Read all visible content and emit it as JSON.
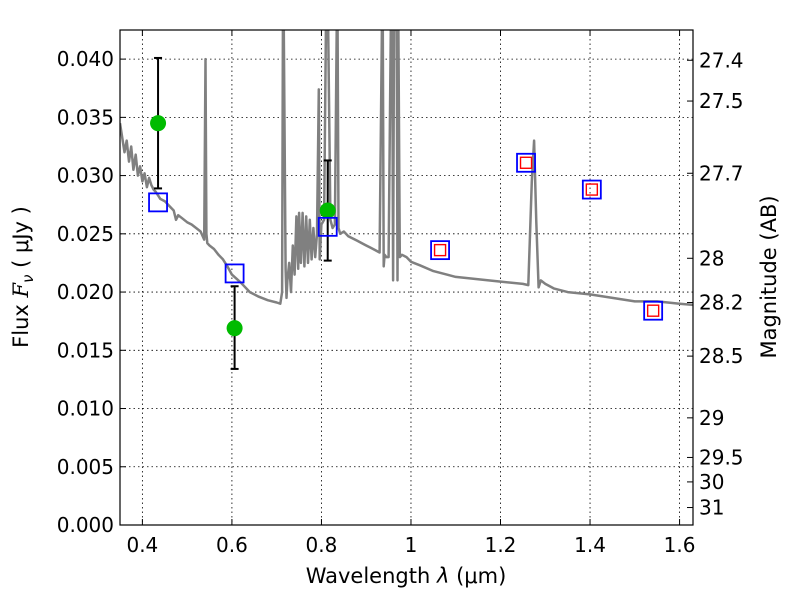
{
  "chart_data": {
    "type": "scatter",
    "xlabel_prefix": "Wavelength  ",
    "xlabel_symbol": "λ",
    "xlabel_unit": " (μm)",
    "ylabel_prefix": "Flux  ",
    "ylabel_symbol": "F",
    "ylabel_subscript": "ν",
    "ylabel_unit": "  ( μJy )",
    "y2label": "Magnitude (AB)",
    "xlim": [
      0.35,
      1.63
    ],
    "ylim": [
      0.0,
      0.0425
    ],
    "grid": true,
    "xticks": [
      0.4,
      0.6,
      0.8,
      1.0,
      1.2,
      1.4,
      1.6
    ],
    "xtick_labels": [
      "0.4",
      "0.6",
      "0.8",
      "1",
      "1.2",
      "1.4",
      "1.6"
    ],
    "yticks": [
      0.0,
      0.005,
      0.01,
      0.015,
      0.02,
      0.025,
      0.03,
      0.035,
      0.04
    ],
    "ytick_labels": [
      "0.000",
      "0.005",
      "0.010",
      "0.015",
      "0.020",
      "0.025",
      "0.030",
      "0.035",
      "0.040"
    ],
    "mag_ticks": [
      {
        "label": "27.4",
        "flux": 0.0399
      },
      {
        "label": "27.5",
        "flux": 0.0364
      },
      {
        "label": "27.7",
        "flux": 0.0302
      },
      {
        "label": "28",
        "flux": 0.0229
      },
      {
        "label": "28.2",
        "flux": 0.0191
      },
      {
        "label": "28.5",
        "flux": 0.0145
      },
      {
        "label": "29",
        "flux": 0.0092
      },
      {
        "label": "29.5",
        "flux": 0.0058
      },
      {
        "label": "30",
        "flux": 0.0037
      },
      {
        "label": "31",
        "flux": 0.0015
      }
    ],
    "series": [
      {
        "name": "observed",
        "marker": "circle",
        "color": "#00bb00",
        "points": [
          {
            "x": 0.435,
            "y": 0.0345,
            "ylo": 0.0289,
            "yhi": 0.0401
          },
          {
            "x": 0.606,
            "y": 0.0169,
            "ylo": 0.0134,
            "yhi": 0.0205
          },
          {
            "x": 0.814,
            "y": 0.027,
            "ylo": 0.0227,
            "yhi": 0.0313
          }
        ]
      },
      {
        "name": "model_broadband",
        "marker": "square",
        "color": "#0000ff",
        "points": [
          {
            "x": 0.435,
            "y": 0.0277
          },
          {
            "x": 0.606,
            "y": 0.0216
          },
          {
            "x": 0.814,
            "y": 0.0256
          },
          {
            "x": 1.065,
            "y": 0.0236
          },
          {
            "x": 1.257,
            "y": 0.0311
          },
          {
            "x": 1.404,
            "y": 0.0288
          },
          {
            "x": 1.541,
            "y": 0.0184
          }
        ]
      },
      {
        "name": "model_ir",
        "marker": "square-small",
        "color": "#ff0000",
        "points": [
          {
            "x": 1.065,
            "y": 0.0236
          },
          {
            "x": 1.257,
            "y": 0.0311
          },
          {
            "x": 1.404,
            "y": 0.0288
          },
          {
            "x": 1.541,
            "y": 0.0184
          }
        ]
      },
      {
        "name": "sed_model",
        "type": "line",
        "color": "#808080",
        "x": [
          0.35,
          0.36,
          0.365,
          0.37,
          0.375,
          0.38,
          0.385,
          0.39,
          0.395,
          0.4,
          0.405,
          0.41,
          0.415,
          0.42,
          0.425,
          0.43,
          0.435,
          0.44,
          0.45,
          0.46,
          0.47,
          0.475,
          0.48,
          0.49,
          0.5,
          0.51,
          0.52,
          0.53,
          0.538,
          0.541,
          0.543,
          0.545,
          0.55,
          0.56,
          0.57,
          0.58,
          0.59,
          0.6,
          0.62,
          0.64,
          0.66,
          0.68,
          0.7,
          0.708,
          0.712,
          0.714,
          0.716,
          0.72,
          0.722,
          0.724,
          0.728,
          0.732,
          0.736,
          0.74,
          0.744,
          0.748,
          0.75,
          0.754,
          0.758,
          0.762,
          0.766,
          0.77,
          0.774,
          0.778,
          0.782,
          0.786,
          0.79,
          0.794,
          0.796,
          0.8,
          0.806,
          0.81,
          0.815,
          0.82,
          0.825,
          0.83,
          0.834,
          0.836,
          0.838,
          0.842,
          0.85,
          0.86,
          0.87,
          0.88,
          0.89,
          0.9,
          0.91,
          0.92,
          0.93,
          0.935,
          0.937,
          0.939,
          0.941,
          0.945,
          0.95,
          0.955,
          0.958,
          0.96,
          0.962,
          0.965,
          0.968,
          0.97,
          0.972,
          0.975,
          0.98,
          0.985,
          0.99,
          1.0,
          1.02,
          1.05,
          1.08,
          1.1,
          1.15,
          1.2,
          1.25,
          1.262,
          1.27,
          1.275,
          1.28,
          1.285,
          1.29,
          1.3,
          1.32,
          1.35,
          1.4,
          1.45,
          1.5,
          1.55,
          1.6,
          1.63
        ],
        "y": [
          0.0345,
          0.032,
          0.033,
          0.0312,
          0.0325,
          0.0305,
          0.0318,
          0.03,
          0.0308,
          0.0295,
          0.0302,
          0.029,
          0.0298,
          0.0292,
          0.0288,
          0.0286,
          0.0283,
          0.028,
          0.0278,
          0.0274,
          0.027,
          0.0262,
          0.0266,
          0.0263,
          0.026,
          0.0258,
          0.0255,
          0.0252,
          0.0245,
          0.04,
          0.025,
          0.0242,
          0.024,
          0.0237,
          0.0232,
          0.0228,
          0.0222,
          0.0215,
          0.0208,
          0.02,
          0.0196,
          0.0193,
          0.0191,
          0.019,
          0.02,
          0.0425,
          0.0425,
          0.022,
          0.0195,
          0.021,
          0.0225,
          0.02,
          0.024,
          0.0215,
          0.0265,
          0.022,
          0.0268,
          0.0225,
          0.0268,
          0.0222,
          0.0265,
          0.0225,
          0.0262,
          0.0228,
          0.0255,
          0.023,
          0.025,
          0.0374,
          0.0228,
          0.0258,
          0.0262,
          0.0425,
          0.0425,
          0.0262,
          0.0255,
          0.0258,
          0.0425,
          0.0425,
          0.0255,
          0.025,
          0.0252,
          0.0248,
          0.0246,
          0.0244,
          0.0242,
          0.024,
          0.0238,
          0.0236,
          0.0234,
          0.0425,
          0.0425,
          0.0222,
          0.0232,
          0.023,
          0.023,
          0.0425,
          0.0425,
          0.021,
          0.0425,
          0.0425,
          0.0425,
          0.021,
          0.0425,
          0.023,
          0.0232,
          0.0231,
          0.023,
          0.0226,
          0.0223,
          0.0218,
          0.0215,
          0.0213,
          0.0211,
          0.0209,
          0.0207,
          0.0206,
          0.0295,
          0.033,
          0.026,
          0.0204,
          0.021,
          0.0207,
          0.0203,
          0.02,
          0.0198,
          0.0195,
          0.0192,
          0.0192,
          0.019,
          0.0189
        ]
      }
    ]
  }
}
